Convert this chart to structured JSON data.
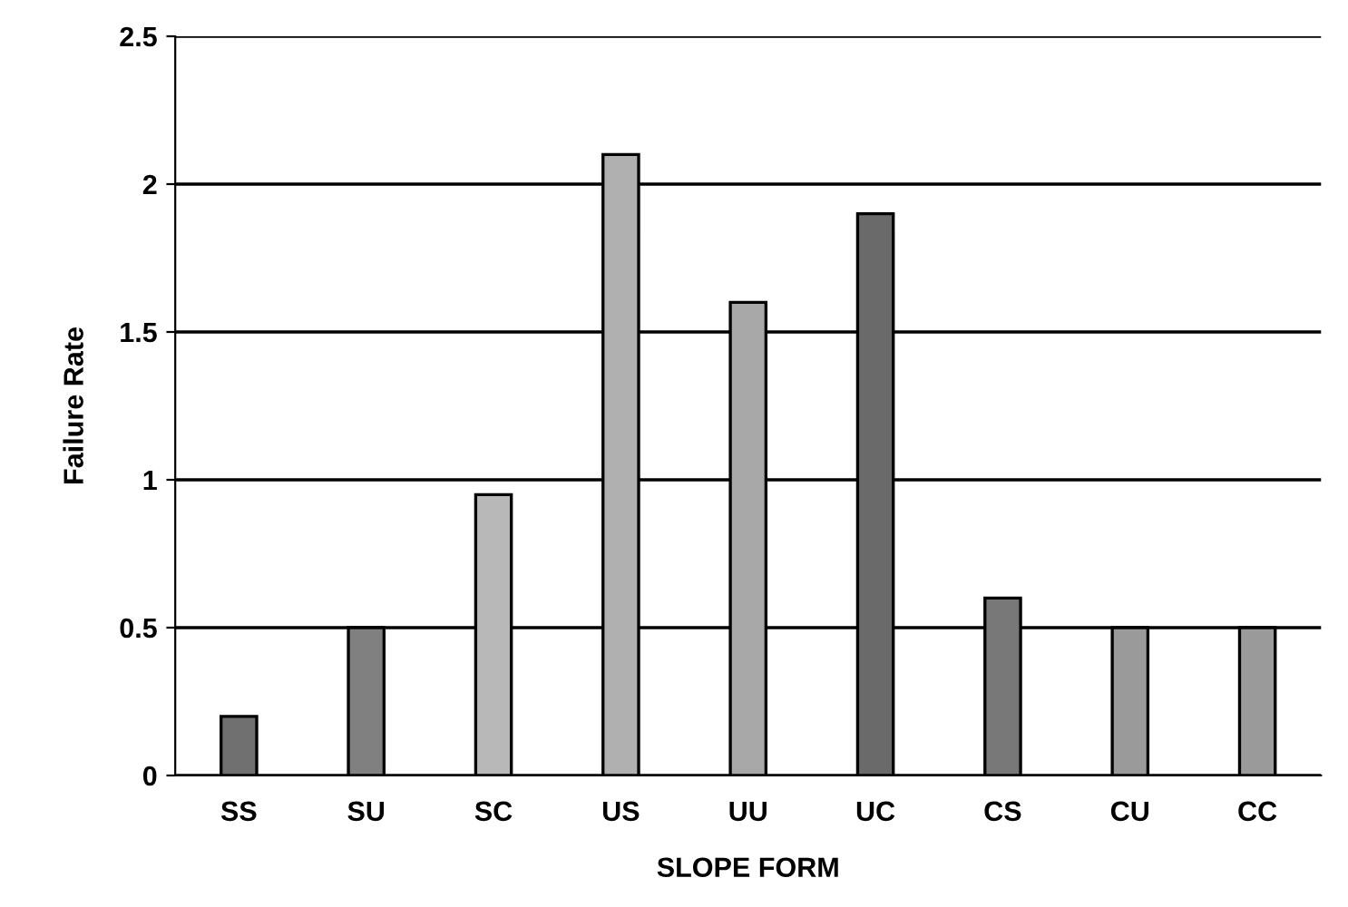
{
  "chart_data": {
    "type": "bar",
    "xlabel": "SLOPE FORM",
    "ylabel": "Failure Rate",
    "categories": [
      "SS",
      "SU",
      "SC",
      "US",
      "UU",
      "UC",
      "CS",
      "CU",
      "CC"
    ],
    "values": [
      0.2,
      0.5,
      0.95,
      2.1,
      1.6,
      1.9,
      0.6,
      0.5,
      0.5
    ],
    "colors": [
      "#707070",
      "#808080",
      "#b8b8b8",
      "#b0b0b0",
      "#a8a8a8",
      "#6a6a6a",
      "#787878",
      "#9a9a9a",
      "#9a9a9a"
    ],
    "ylim": [
      0,
      2.5
    ],
    "yticks": [
      0,
      0.5,
      1,
      1.5,
      2,
      2.5
    ],
    "grid": "y"
  }
}
